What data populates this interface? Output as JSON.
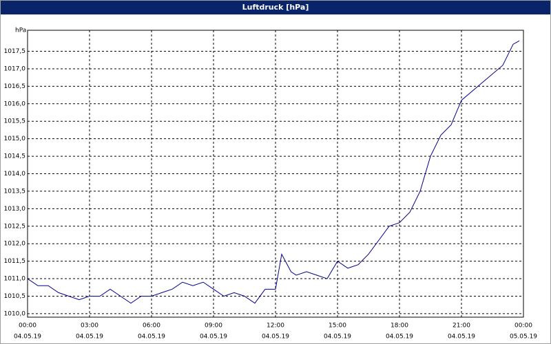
{
  "chart_data": {
    "type": "line",
    "title": "Luftdruck [hPa]",
    "y_label": "hPa",
    "xlim": [
      0,
      24
    ],
    "ylim": [
      1009.9,
      1018.1
    ],
    "xticks": [
      {
        "value": 0,
        "label": "00:00",
        "date": "04.05.19"
      },
      {
        "value": 3,
        "label": "03:00",
        "date": "04.05.19"
      },
      {
        "value": 6,
        "label": "06:00",
        "date": "04.05.19"
      },
      {
        "value": 9,
        "label": "09:00",
        "date": "04.05.19"
      },
      {
        "value": 12,
        "label": "12:00",
        "date": "04.05.19"
      },
      {
        "value": 15,
        "label": "15:00",
        "date": "04.05.19"
      },
      {
        "value": 18,
        "label": "18:00",
        "date": "04.05.19"
      },
      {
        "value": 21,
        "label": "21:00",
        "date": "04.05.19"
      },
      {
        "value": 24,
        "label": "00:00",
        "date": "05.05.19"
      }
    ],
    "yticks": [
      {
        "value": 1010.0,
        "label": "1010,0"
      },
      {
        "value": 1010.5,
        "label": "1010,5"
      },
      {
        "value": 1011.0,
        "label": "1011,0"
      },
      {
        "value": 1011.5,
        "label": "1011,5"
      },
      {
        "value": 1012.0,
        "label": "1012,0"
      },
      {
        "value": 1012.5,
        "label": "1012,5"
      },
      {
        "value": 1013.0,
        "label": "1013,0"
      },
      {
        "value": 1013.5,
        "label": "1013,5"
      },
      {
        "value": 1014.0,
        "label": "1014,0"
      },
      {
        "value": 1014.5,
        "label": "1014,5"
      },
      {
        "value": 1015.0,
        "label": "1015,0"
      },
      {
        "value": 1015.5,
        "label": "1015,5"
      },
      {
        "value": 1016.0,
        "label": "1016,0"
      },
      {
        "value": 1016.5,
        "label": "1016,5"
      },
      {
        "value": 1017.0,
        "label": "1017,0"
      },
      {
        "value": 1017.5,
        "label": "1017,5"
      }
    ],
    "grid": true,
    "color": "#00008b",
    "x": [
      0,
      0.5,
      1,
      1.5,
      2,
      2.5,
      3,
      3.5,
      4,
      4.5,
      5,
      5.5,
      6,
      6.5,
      7,
      7.5,
      8,
      8.5,
      9,
      9.5,
      10,
      10.5,
      11,
      11.5,
      12,
      12.3,
      12.75,
      13,
      13.5,
      14,
      14.5,
      15,
      15.5,
      16,
      16.5,
      17,
      17.5,
      18,
      18.5,
      19,
      19.5,
      20,
      20.5,
      21,
      22,
      23,
      23.5,
      23.8
    ],
    "values": [
      1011.0,
      1010.8,
      1010.8,
      1010.6,
      1010.5,
      1010.4,
      1010.5,
      1010.5,
      1010.7,
      1010.5,
      1010.3,
      1010.5,
      1010.5,
      1010.6,
      1010.7,
      1010.9,
      1010.8,
      1010.9,
      1010.7,
      1010.5,
      1010.6,
      1010.5,
      1010.3,
      1010.7,
      1010.7,
      1011.7,
      1011.2,
      1011.1,
      1011.2,
      1011.1,
      1011.0,
      1011.5,
      1011.3,
      1011.4,
      1011.7,
      1012.1,
      1012.5,
      1012.6,
      1012.9,
      1013.5,
      1014.5,
      1015.1,
      1015.4,
      1016.1,
      1016.6,
      1017.1,
      1017.7,
      1017.8
    ]
  }
}
